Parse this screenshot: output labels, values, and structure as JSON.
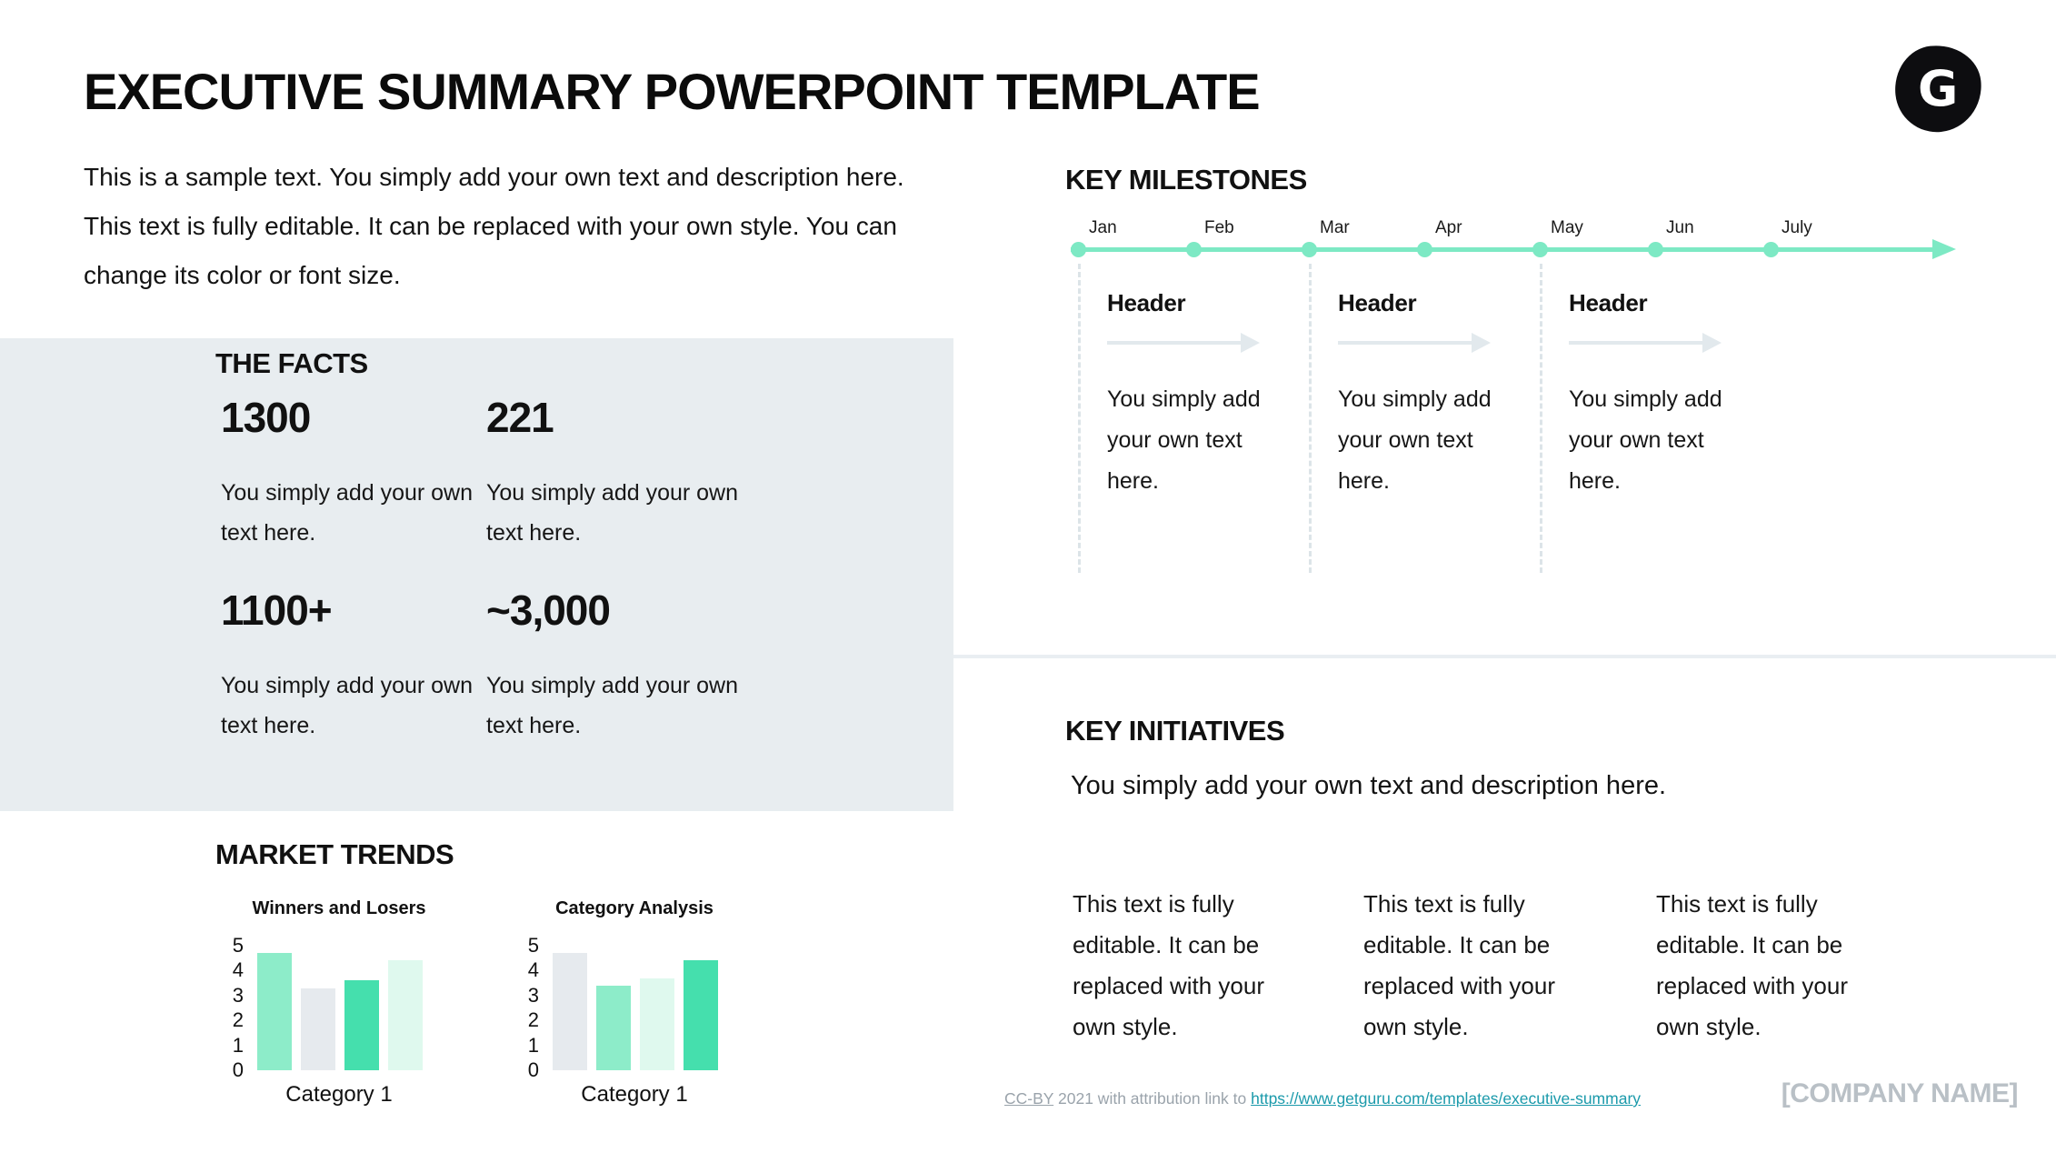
{
  "header": {
    "title": "EXECUTIVE SUMMARY POWERPOINT TEMPLATE",
    "intro": "This is a sample text. You simply add your own text and description here. This text is fully editable. It can be replaced with your own style. You can change its color or font size.",
    "logo_letter": "G"
  },
  "facts": {
    "heading": "THE FACTS",
    "items": [
      {
        "value": "1300",
        "bg": "#7debc5",
        "description": "You simply add your own text here."
      },
      {
        "value": "221",
        "bg": "#dcfaee",
        "description": "You simply add your own text here."
      },
      {
        "value": "1100+",
        "bg": "#ffffff",
        "description": "You simply add your own text here."
      },
      {
        "value": "~3,000",
        "bg": "#4be0ad",
        "description": "You simply add your own text here."
      }
    ]
  },
  "milestones": {
    "heading": "KEY MILESTONES",
    "months": [
      "Jan",
      "Feb",
      "Mar",
      "Apr",
      "May",
      "Jun",
      "July"
    ],
    "line_color": "#7de9c4",
    "columns": [
      {
        "header": "Header",
        "body": "You simply add your own text here."
      },
      {
        "header": "Header",
        "body": "You simply add your own text here."
      },
      {
        "header": "Header",
        "body": "You simply add your own text here."
      }
    ]
  },
  "market_trends": {
    "heading": "MARKET TRENDS"
  },
  "chart_data": [
    {
      "type": "bar",
      "title": "Winners and Losers",
      "categories": [
        "Category 1"
      ],
      "values": [
        4.7,
        3.3,
        3.6,
        4.4
      ],
      "bar_colors": [
        "#8decc9",
        "#e6eaee",
        "#45dfad",
        "#dff9ee"
      ],
      "xlabel": "Category 1",
      "ylabel": "",
      "ylim": [
        0,
        5
      ],
      "yticks": [
        0,
        1,
        2,
        3,
        4,
        5
      ],
      "grid": false,
      "legend": "none"
    },
    {
      "type": "bar",
      "title": "Category Analysis",
      "categories": [
        "Category 1"
      ],
      "values": [
        4.7,
        3.4,
        3.7,
        4.4
      ],
      "bar_colors": [
        "#e6eaee",
        "#8decc9",
        "#dff9ee",
        "#45dfad"
      ],
      "xlabel": "Category 1",
      "ylabel": "",
      "ylim": [
        0,
        5
      ],
      "yticks": [
        0,
        1,
        2,
        3,
        4,
        5
      ],
      "grid": false,
      "legend": "none"
    }
  ],
  "initiatives": {
    "heading": "KEY INITIATIVES",
    "intro": "You simply add your own text and description here.",
    "columns": [
      {
        "body": "This text is fully editable. It can be replaced with your own style."
      },
      {
        "body": "This text is fully editable. It can be replaced with your own style."
      },
      {
        "body": "This text is fully editable. It can be replaced with your own style."
      }
    ]
  },
  "footer": {
    "license_label": "CC-BY",
    "attribution_text": "2021 with attribution link to",
    "link": "https://www.getguru.com/templates/executive-summary",
    "company_name": "[COMPANY NAME]"
  },
  "colors": {
    "panel_bg": "#e8edf0",
    "mint_medium": "#7debc5",
    "mint_pale": "#dcfaee",
    "green_strong": "#4be0ad",
    "chart_gray": "#e6eaee",
    "timeline_green": "#7de9c4",
    "link_teal": "#1b9aab"
  }
}
